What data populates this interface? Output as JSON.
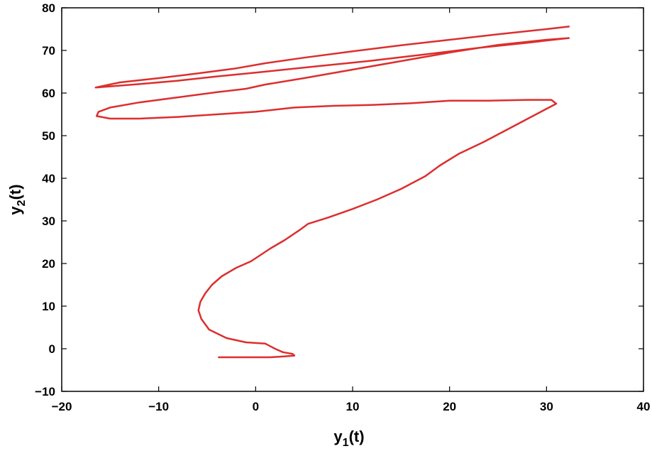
{
  "chart_data": {
    "type": "line",
    "title": "",
    "xlabel": {
      "base": "y",
      "sub": "1",
      "suffix": "(t)"
    },
    "ylabel": {
      "base": "y",
      "sub": "2",
      "suffix": "(t)"
    },
    "xlim": [
      -20,
      40
    ],
    "ylim": [
      -10,
      80
    ],
    "xticks": [
      -20,
      -10,
      0,
      10,
      20,
      30,
      40
    ],
    "yticks": [
      -10,
      0,
      10,
      20,
      30,
      40,
      50,
      60,
      70,
      80
    ],
    "xtick_labels": [
      "−20",
      "−10",
      "0",
      "10",
      "20",
      "30",
      "40"
    ],
    "ytick_labels": [
      "−10",
      "0",
      "10",
      "20",
      "30",
      "40",
      "50",
      "60",
      "70",
      "80"
    ],
    "grid": false,
    "line_color": "#dd2e2e",
    "series": [
      {
        "x": [
          -3.8,
          -1.0,
          1.5,
          3.0,
          4.0,
          3.8,
          2.8,
          2.0,
          1.0,
          -1.0,
          -3.0,
          -4.8,
          -5.6,
          -5.9,
          -5.7,
          -5.2,
          -4.5,
          -3.5,
          -2.0,
          -0.5,
          0.5,
          1.5,
          3.0,
          4.5,
          5.4,
          7.5,
          10.0,
          12.5,
          15.0,
          17.5,
          19.0,
          21.0,
          23.5,
          26.0,
          28.5,
          31.0,
          30.5,
          28.0,
          24.0,
          20.0,
          16.0,
          12.0,
          8.0,
          4.0,
          0.0,
          -4.0,
          -8.0,
          -12.0,
          -15.0,
          -16.4,
          -16.2,
          -15.0,
          -12.0,
          -8.0,
          -4.0,
          -1.0,
          1.0,
          5.0,
          10.0,
          15.0,
          20.0,
          25.0,
          30.0,
          32.3,
          31.5,
          28.0,
          23.0,
          18.0,
          12.0,
          6.0,
          0.0,
          -4.0,
          -8.0,
          -12.0,
          -16.5,
          -14.0,
          -10.0,
          -6.0,
          -2.0,
          1.0,
          5.0,
          10.0,
          15.0,
          20.0,
          25.0,
          30.0,
          32.3
        ],
        "y": [
          -2.0,
          -2.0,
          -2.0,
          -1.8,
          -1.6,
          -1.2,
          -0.8,
          0.0,
          1.2,
          1.5,
          2.5,
          4.5,
          7.0,
          9.0,
          11.0,
          13.0,
          15.0,
          17.0,
          19.0,
          20.5,
          22.0,
          23.5,
          25.5,
          27.8,
          29.3,
          30.8,
          32.8,
          35.0,
          37.5,
          40.5,
          43.0,
          45.8,
          48.5,
          51.5,
          54.5,
          57.5,
          58.4,
          58.4,
          58.2,
          58.2,
          57.6,
          57.2,
          57.0,
          56.6,
          55.6,
          55.0,
          54.4,
          54.0,
          54.0,
          54.6,
          55.6,
          56.6,
          57.8,
          59.0,
          60.2,
          61.0,
          62.0,
          63.5,
          65.5,
          67.5,
          69.5,
          71.3,
          72.5,
          72.9,
          72.7,
          71.8,
          70.6,
          69.2,
          67.6,
          66.2,
          64.8,
          63.9,
          62.9,
          62.1,
          61.3,
          62.5,
          63.5,
          64.6,
          65.8,
          67.0,
          68.3,
          69.8,
          71.2,
          72.5,
          73.8,
          75.0,
          75.6
        ]
      }
    ]
  }
}
